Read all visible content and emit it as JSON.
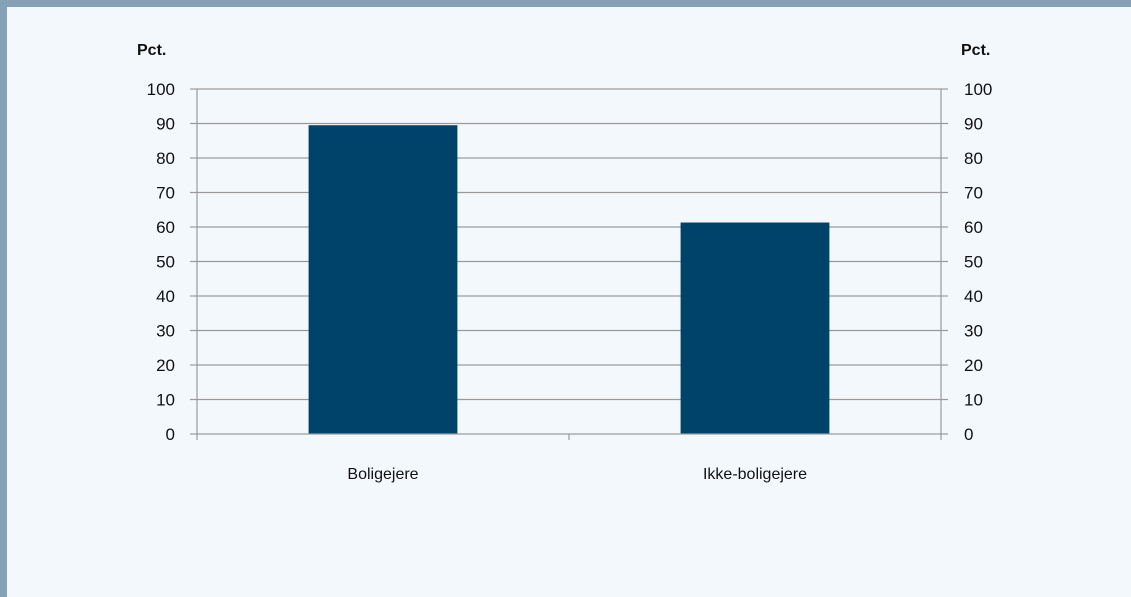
{
  "colors": {
    "bar": "#00436a",
    "frame": "#85a1b5",
    "background": "#f3f8fc",
    "gridline": "#9a9a9a"
  },
  "chart_data": {
    "type": "bar",
    "categories": [
      "Boligejere",
      "Ikke-boligejere"
    ],
    "values": [
      89.5,
      61.3
    ],
    "ylabel_left": "Pct.",
    "ylabel_right": "Pct.",
    "ylim": [
      0,
      100
    ],
    "yticks": [
      0,
      10,
      20,
      30,
      40,
      50,
      60,
      70,
      80,
      90,
      100
    ],
    "grid": true,
    "legend": "none"
  }
}
